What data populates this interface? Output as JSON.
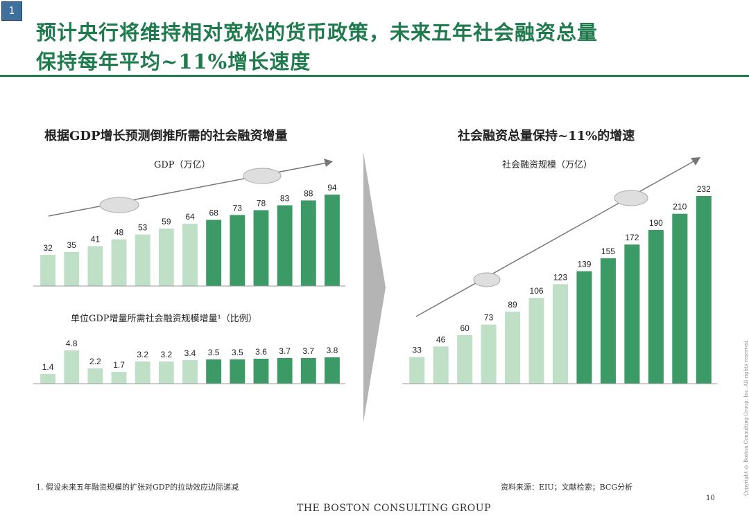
{
  "page_badge": "1",
  "title": {
    "line1": "预计央行将维持相对宽松的货币政策，未来五年社会融资总量",
    "line2": "保持每年平均~11%增长速度"
  },
  "left_panel": {
    "title": "根据GDP增长预测倒推所需的社会融资增量",
    "gdp_subtitle": "GDP（万亿）",
    "ratio_subtitle": "单位GDP增量所需社会融资规模增量¹（比例）"
  },
  "right_panel": {
    "title": "社会融资总量保持~11%的增速",
    "subtitle": "社会融资规模（万亿）"
  },
  "footnote": "1. 假设未来五年融资规模的扩张对GDP的拉动效应边际递减",
  "source": "资料来源：EIU；文献检索；BCG分析",
  "logo": "THE BOSTON CONSULTING GROUP",
  "page_number": "10",
  "copyright": "Copyright © Boston Consulting Group, Inc. All rights reserved.",
  "colors": {
    "title_green": "#1f7a4d",
    "bar_light": "#bfe0c6",
    "bar_dark": "#3c9a66"
  },
  "chart_data": [
    {
      "type": "bar",
      "title": "GDP（万亿）",
      "values": [
        32,
        35,
        41,
        48,
        53,
        59,
        64,
        68,
        73,
        78,
        83,
        88,
        94
      ],
      "light_bar_count": 7,
      "ylim": [
        0,
        94
      ],
      "grid": false
    },
    {
      "type": "bar",
      "title": "单位GDP增量所需社会融资规模增量¹（比例）",
      "values": [
        1.4,
        4.8,
        2.2,
        1.7,
        3.2,
        3.2,
        3.4,
        3.5,
        3.5,
        3.6,
        3.7,
        3.7,
        3.8
      ],
      "light_bar_count": 7,
      "ylim": [
        0,
        4.8
      ],
      "grid": false
    },
    {
      "type": "bar",
      "title": "社会融资规模（万亿）",
      "values": [
        33,
        46,
        60,
        73,
        89,
        106,
        123,
        139,
        155,
        172,
        190,
        210,
        232
      ],
      "light_bar_count": 7,
      "ylim": [
        0,
        232
      ],
      "grid": false
    }
  ]
}
